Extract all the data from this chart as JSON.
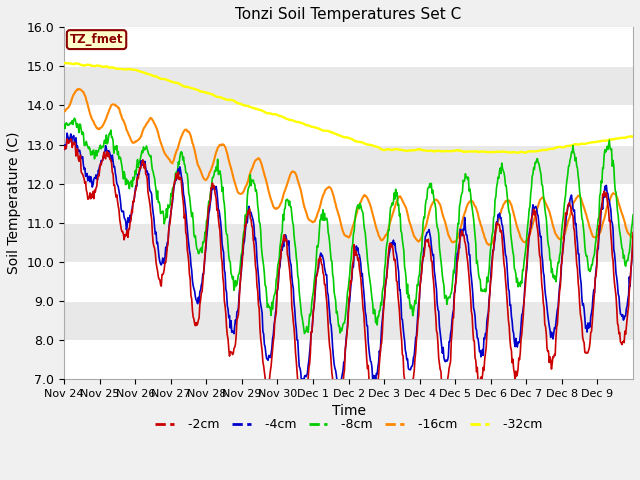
{
  "title": "Tonzi Soil Temperatures Set C",
  "xlabel": "Time",
  "ylabel": "Soil Temperature (C)",
  "ylim": [
    7.0,
    16.0
  ],
  "yticks": [
    7.0,
    8.0,
    9.0,
    10.0,
    11.0,
    12.0,
    13.0,
    14.0,
    15.0,
    16.0
  ],
  "xtick_labels": [
    "Nov 24",
    "Nov 25",
    "Nov 26",
    "Nov 27",
    "Nov 28",
    "Nov 29",
    "Nov 30",
    "Dec 1",
    "Dec 2",
    "Dec 3",
    "Dec 4",
    "Dec 5",
    "Dec 6",
    "Dec 7",
    "Dec 8",
    "Dec 9"
  ],
  "line_colors": {
    "-2cm": "#cc0000",
    "-4cm": "#0000cc",
    "-8cm": "#00cc00",
    "-16cm": "#ff8800",
    "-32cm": "#ffff00"
  },
  "annotation_text": "TZ_fmet",
  "annotation_bg": "#ffffcc",
  "annotation_border": "#8b0000",
  "bg_alternating": [
    "#ffffff",
    "#e8e8e8"
  ],
  "title_fontsize": 11,
  "axis_fontsize": 9,
  "legend_fontsize": 9
}
